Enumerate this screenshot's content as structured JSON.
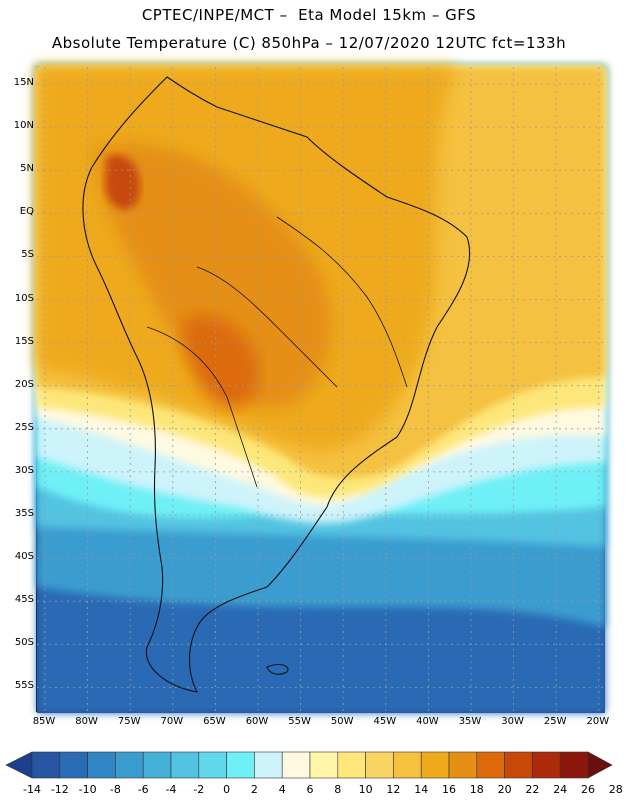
{
  "header": {
    "line1": "CPTEC/INPE/MCT –  Eta Model 15km – GFS",
    "line2": "Absolute Temperature (C) 850hPa – 12/07/2020 12UTC fct=133h"
  },
  "lat_labels": [
    "15N",
    "10N",
    "5N",
    "EQ",
    "5S",
    "10S",
    "15S",
    "20S",
    "25S",
    "30S",
    "35S",
    "40S",
    "45S",
    "50S",
    "55S"
  ],
  "lon_labels": [
    "85W",
    "80W",
    "75W",
    "70W",
    "65W",
    "60W",
    "55W",
    "50W",
    "45W",
    "40W",
    "35W",
    "30W",
    "25W",
    "20W"
  ],
  "colorbar": {
    "labels": [
      "-14",
      "-12",
      "-10",
      "-8",
      "-6",
      "-4",
      "-2",
      "0",
      "2",
      "4",
      "6",
      "8",
      "10",
      "12",
      "14",
      "16",
      "18",
      "20",
      "22",
      "24",
      "26",
      "28"
    ],
    "colors": [
      "#1c3f8f",
      "#2555a3",
      "#2a6bb5",
      "#3085c4",
      "#3a9ccf",
      "#45b0d8",
      "#52c3e2",
      "#62d8ec",
      "#6ef0f6",
      "#cdf3fb",
      "#fff9e2",
      "#fff6a8",
      "#fde77a",
      "#fad463",
      "#f5c13f",
      "#eeaa1a",
      "#e58f14",
      "#dc6a0a",
      "#c8480a",
      "#ad2a0a",
      "#8c170c",
      "#6a0f0e"
    ]
  }
}
